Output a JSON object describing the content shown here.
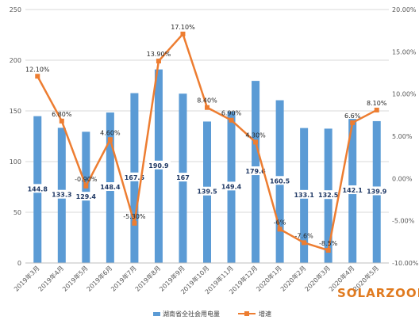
{
  "chart_data": {
    "type": "bar",
    "categories": [
      "2019年3月",
      "2019年4月",
      "2019年5月",
      "2019年6月",
      "2019年7月",
      "2019年8月",
      "2019年9月",
      "2019年10月",
      "2019年11月",
      "2019年12月",
      "2020年1月",
      "2020年2月",
      "2020年3月",
      "2020年4月",
      "2020年5月"
    ],
    "series": [
      {
        "name": "湖南省全社会用电量",
        "type": "bar",
        "axis": "left",
        "color": "#5b9bd5",
        "values": [
          144.8,
          133.3,
          129.4,
          148.4,
          167.5,
          190.9,
          167,
          139.5,
          149.4,
          179.6,
          160.5,
          133.1,
          132.5,
          142.1,
          139.9
        ],
        "labels": [
          "144.8",
          "133.3",
          "129.4",
          "148.4",
          "167.5",
          "190.9",
          "167",
          "139.5",
          "149.4",
          "179.6",
          "160.5",
          "133.1",
          "132.5",
          "142.1",
          "139.9"
        ]
      },
      {
        "name": "增速",
        "type": "line",
        "axis": "right",
        "color": "#ed7d31",
        "values": [
          12.1,
          6.8,
          -0.9,
          4.6,
          -5.3,
          13.9,
          17.1,
          8.4,
          6.9,
          4.3,
          -6,
          -7.6,
          -8.5,
          6.6,
          8.1
        ],
        "labels": [
          "12.10%",
          "6.80%",
          "-0.90%",
          "4.60%",
          "-5.30%",
          "13.90%",
          "17.10%",
          "8.40%",
          "6.90%",
          "4.30%",
          "-6%",
          "-7.6%",
          "-8.5%",
          "6.6%",
          "8.10%"
        ]
      }
    ],
    "y_left": {
      "min": 0,
      "max": 250,
      "step": 50,
      "ticks": [
        "0",
        "50",
        "100",
        "150",
        "200",
        "250"
      ]
    },
    "y_right": {
      "min": -10,
      "max": 20,
      "step": 5,
      "ticks": [
        "-10.00%",
        "-5.00%",
        "0.00%",
        "5.00%",
        "10.00%",
        "15.00%",
        "20.00%"
      ]
    },
    "grid": true,
    "legend_position": "bottom",
    "watermark": "SOLARZOOM"
  }
}
